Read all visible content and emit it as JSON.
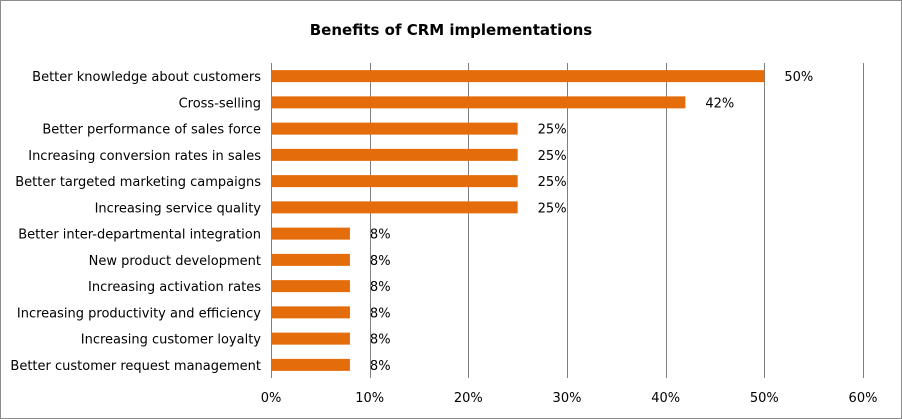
{
  "chart_data": {
    "type": "bar",
    "orientation": "horizontal",
    "title": "Benefits of CRM implementations",
    "categories": [
      "Better knowledge about customers",
      "Cross-selling",
      "Better performance of sales force",
      "Increasing conversion rates in sales",
      "Better targeted marketing campaigns",
      "Increasing service quality",
      "Better inter-departmental integration",
      "New product development",
      "Increasing activation rates",
      "Increasing productivity and efficiency",
      "Increasing customer loyalty",
      "Better customer request management"
    ],
    "values": [
      50,
      42,
      25,
      25,
      25,
      25,
      8,
      8,
      8,
      8,
      8,
      8
    ],
    "data_labels": [
      "50%",
      "42%",
      "25%",
      "25%",
      "25%",
      "25%",
      "8%",
      "8%",
      "8%",
      "8%",
      "8%",
      "8%"
    ],
    "x_ticks": [
      "0%",
      "10%",
      "20%",
      "30%",
      "40%",
      "50%",
      "60%"
    ],
    "xlim": [
      0,
      60
    ],
    "grid": true,
    "legend": "none",
    "bar_color": "#E46C0A",
    "grid_color": "#7f7f7f"
  }
}
